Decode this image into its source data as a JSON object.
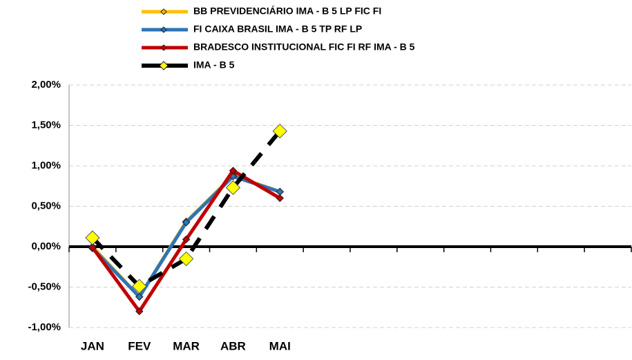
{
  "chart_data": {
    "type": "line",
    "categories": [
      "JAN",
      "FEV",
      "MAR",
      "ABR",
      "MAI",
      null,
      null,
      null,
      null,
      null,
      null,
      null
    ],
    "series": [
      {
        "name": "BB PREVIDENCIÁRIO IMA - B 5 LP FIC FI",
        "color": "#ffc000",
        "marker_color": "#ffc000",
        "values": [
          0.0,
          -0.62,
          0.31,
          0.88,
          0.68,
          null,
          null,
          null,
          null,
          null,
          null,
          null
        ]
      },
      {
        "name": "FI CAIXA BRASIL IMA - B 5 TP RF LP",
        "color": "#2e75b6",
        "marker_color": "#2e75b6",
        "values": [
          -0.02,
          -0.62,
          0.3,
          0.87,
          0.68,
          null,
          null,
          null,
          null,
          null,
          null,
          null
        ]
      },
      {
        "name": "BRADESCO INSTITUCIONAL FIC FI RF IMA - B 5",
        "color": "#c00000",
        "marker_color": "#c00000",
        "values": [
          -0.01,
          -0.8,
          0.09,
          0.94,
          0.6,
          null,
          null,
          null,
          null,
          null,
          null,
          null
        ]
      },
      {
        "name": "IMA - B 5",
        "color": "#000000",
        "marker_color": "#ffff00",
        "dashed": true,
        "values": [
          0.11,
          -0.49,
          -0.15,
          0.73,
          1.43,
          null,
          null,
          null,
          null,
          null,
          null,
          null
        ]
      }
    ],
    "ylim": [
      -1.0,
      2.0
    ],
    "yticks": [
      {
        "value": -1.0,
        "label": "-1,00%"
      },
      {
        "value": -0.5,
        "label": "-0,50%"
      },
      {
        "value": 0.0,
        "label": "0,00%"
      },
      {
        "value": 0.5,
        "label": "0,50%"
      },
      {
        "value": 1.0,
        "label": "1,00%"
      },
      {
        "value": 1.5,
        "label": "1,50%"
      },
      {
        "value": 2.0,
        "label": "2,00%"
      }
    ],
    "grid": true,
    "legend": "top"
  }
}
